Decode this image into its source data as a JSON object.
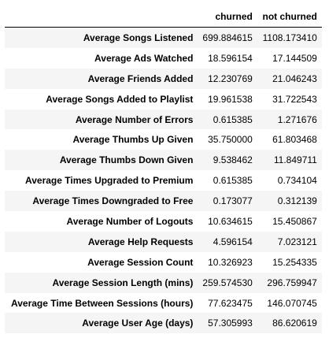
{
  "table": {
    "columns": [
      "churned",
      "not churned"
    ],
    "rows": [
      {
        "label": "Average Songs Listened",
        "churned": "699.884615",
        "not_churned": "1108.173410"
      },
      {
        "label": "Average Ads Watched",
        "churned": "18.596154",
        "not_churned": "17.144509"
      },
      {
        "label": "Average Friends Added",
        "churned": "12.230769",
        "not_churned": "21.046243"
      },
      {
        "label": "Average Songs Added to Playlist",
        "churned": "19.961538",
        "not_churned": "31.722543"
      },
      {
        "label": "Average Number of Errors",
        "churned": "0.615385",
        "not_churned": "1.271676"
      },
      {
        "label": "Average Thumbs Up Given",
        "churned": "35.750000",
        "not_churned": "61.803468"
      },
      {
        "label": "Average Thumbs Down Given",
        "churned": "9.538462",
        "not_churned": "11.849711"
      },
      {
        "label": "Average Times Upgraded to Premium",
        "churned": "0.615385",
        "not_churned": "0.734104"
      },
      {
        "label": "Average Times Downgraded to Free",
        "churned": "0.173077",
        "not_churned": "0.312139"
      },
      {
        "label": "Average Number of Logouts",
        "churned": "10.634615",
        "not_churned": "15.450867"
      },
      {
        "label": "Average Help Requests",
        "churned": "4.596154",
        "not_churned": "7.023121"
      },
      {
        "label": "Average Session Count",
        "churned": "10.326923",
        "not_churned": "15.254335"
      },
      {
        "label": "Average Session Length (mins)",
        "churned": "259.574530",
        "not_churned": "296.759947"
      },
      {
        "label": "Average Time Between Sessions (hours)",
        "churned": "77.623475",
        "not_churned": "146.070745"
      },
      {
        "label": "Average User Age (days)",
        "churned": "57.305993",
        "not_churned": "86.620619"
      }
    ]
  },
  "colors": {
    "stripe": "#f5f5f5",
    "background": "#ffffff",
    "text": "#000000"
  }
}
